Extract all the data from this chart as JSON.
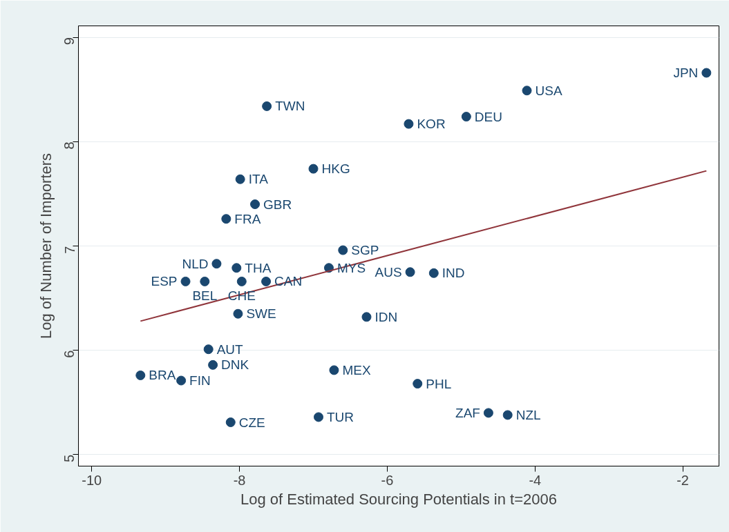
{
  "chart_data": {
    "type": "scatter",
    "xlabel": "Log of Estimated Sourcing Potentials in t=2006",
    "ylabel": "Log of Number of Importers",
    "xlim": [
      -10.18,
      -1.51
    ],
    "ylim": [
      4.89,
      9.11
    ],
    "xticks": [
      -10,
      -8,
      -6,
      -4,
      -2
    ],
    "yticks": [
      5,
      6,
      7,
      8,
      9
    ],
    "grid": "y",
    "series": [
      {
        "marker": "circle",
        "color": "#1a476f",
        "x": [
          -1.68,
          -4.11,
          -7.63,
          -4.93,
          -5.71,
          -7.0,
          -7.99,
          -7.79,
          -8.18,
          -6.6,
          -8.31,
          -8.04,
          -6.79,
          -5.69,
          -5.37,
          -8.73,
          -8.47,
          -7.97,
          -7.64,
          -8.02,
          -6.28,
          -8.42,
          -8.36,
          -6.72,
          -9.34,
          -8.79,
          -5.59,
          -4.63,
          -4.37,
          -6.93,
          -8.12
        ],
        "values": [
          8.66,
          8.49,
          8.34,
          8.24,
          8.17,
          7.74,
          7.64,
          7.4,
          7.26,
          6.96,
          6.83,
          6.79,
          6.79,
          6.75,
          6.74,
          6.66,
          6.66,
          6.66,
          6.66,
          6.35,
          6.32,
          6.01,
          5.86,
          5.81,
          5.76,
          5.71,
          5.68,
          5.4,
          5.38,
          5.36,
          5.31
        ]
      },
      {
        "type": "line",
        "color": "#90353b",
        "x": [
          -9.34,
          -1.68
        ],
        "values": [
          6.28,
          7.72
        ]
      }
    ],
    "annotations": [
      {
        "text": "JPN",
        "x": -1.68,
        "y": 8.66
      },
      {
        "text": "USA",
        "x": -4.11,
        "y": 8.49
      },
      {
        "text": "TWN",
        "x": -7.63,
        "y": 8.34
      },
      {
        "text": "DEU",
        "x": -4.93,
        "y": 8.24
      },
      {
        "text": "KOR",
        "x": -5.71,
        "y": 8.17
      },
      {
        "text": "HKG",
        "x": -7.0,
        "y": 7.74
      },
      {
        "text": "ITA",
        "x": -7.99,
        "y": 7.64
      },
      {
        "text": "GBR",
        "x": -7.79,
        "y": 7.4
      },
      {
        "text": "FRA",
        "x": -8.18,
        "y": 7.26
      },
      {
        "text": "SGP",
        "x": -6.6,
        "y": 6.96
      },
      {
        "text": "NLD",
        "x": -8.31,
        "y": 6.83
      },
      {
        "text": "THA",
        "x": -8.04,
        "y": 6.79
      },
      {
        "text": "MYS",
        "x": -6.79,
        "y": 6.79
      },
      {
        "text": "AUS",
        "x": -5.69,
        "y": 6.75
      },
      {
        "text": "IND",
        "x": -5.37,
        "y": 6.74
      },
      {
        "text": "ESP",
        "x": -8.73,
        "y": 6.66
      },
      {
        "text": "BEL",
        "x": -8.47,
        "y": 6.66
      },
      {
        "text": "CHE",
        "x": -7.97,
        "y": 6.66
      },
      {
        "text": "CAN",
        "x": -7.64,
        "y": 6.66
      },
      {
        "text": "SWE",
        "x": -8.02,
        "y": 6.35
      },
      {
        "text": "IDN",
        "x": -6.28,
        "y": 6.32
      },
      {
        "text": "AUT",
        "x": -8.42,
        "y": 6.01
      },
      {
        "text": "DNK",
        "x": -8.36,
        "y": 5.86
      },
      {
        "text": "MEX",
        "x": -6.72,
        "y": 5.81
      },
      {
        "text": "BRA",
        "x": -9.34,
        "y": 5.76
      },
      {
        "text": "FIN",
        "x": -8.79,
        "y": 5.71
      },
      {
        "text": "PHL",
        "x": -5.59,
        "y": 5.68
      },
      {
        "text": "ZAF",
        "x": -4.63,
        "y": 5.4
      },
      {
        "text": "NZL",
        "x": -4.37,
        "y": 5.38
      },
      {
        "text": "TUR",
        "x": -6.93,
        "y": 5.36
      },
      {
        "text": "CZE",
        "x": -8.12,
        "y": 5.31
      }
    ]
  }
}
